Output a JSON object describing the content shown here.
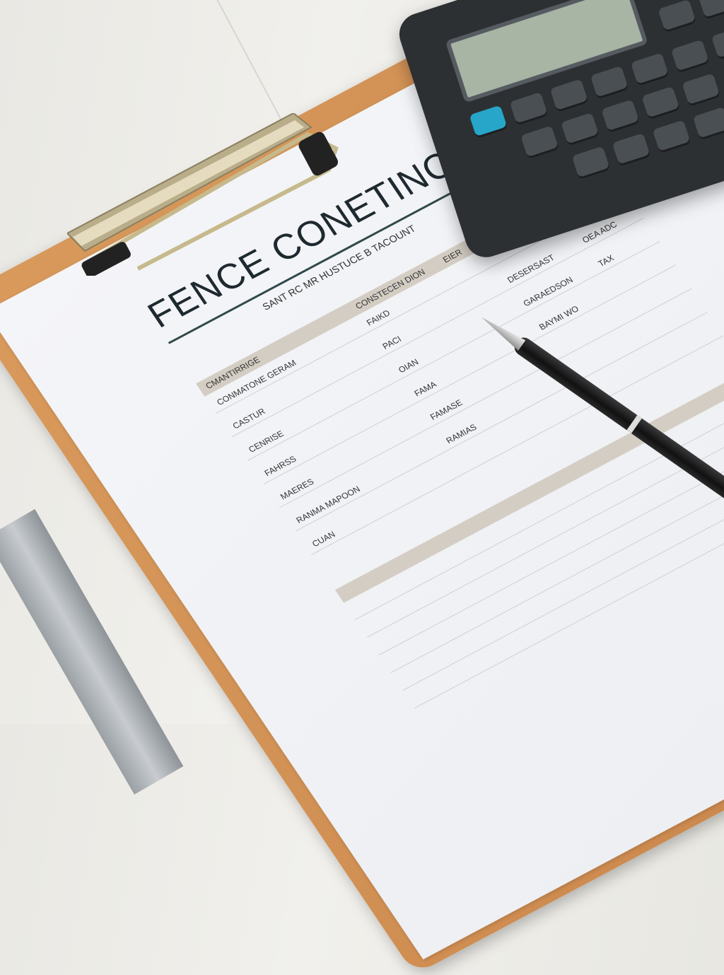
{
  "document": {
    "title": "FENCE CONETINCTON",
    "subtitle": "SANT RC MR HUSTUCE B TACOUNT",
    "section_headers": [
      "CMANTIRRIGE",
      "CONSTECEN DION",
      "EIER"
    ],
    "labels": [
      "CONMATONE GERAM",
      "CASTUR",
      "CENRISE",
      "FAHRSS",
      "MAERES",
      "RANMA MAPOON",
      "FAIKD",
      "PACI",
      "OIAN",
      "FAMA",
      "FAMASE",
      "DESERSAST",
      "GARAEDSON",
      "BAYMI WO",
      "OEA ADC",
      "TAX",
      "CUAN",
      "RAMIAS"
    ]
  },
  "colors": {
    "paper": "#f2f3f6",
    "clipboard": "#cf8c50",
    "band": "#d4cdc4",
    "title": "#1e2930",
    "calculator": "#2d3033",
    "calc_key_accent": "#27a6c9"
  },
  "objects": [
    "clipboard",
    "paper-form",
    "calculator",
    "pen",
    "ruler"
  ]
}
